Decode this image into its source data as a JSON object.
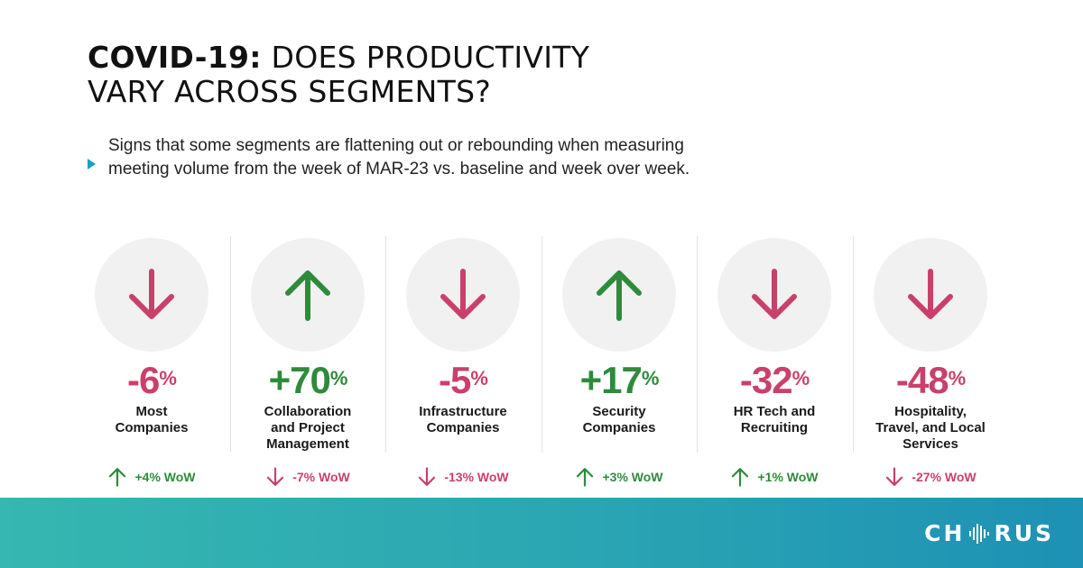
{
  "header": {
    "title_bold": "COVID-19:",
    "title_rest_line1": " DOES PRODUCTIVITY",
    "title_line2": "VARY ACROSS SEGMENTS?"
  },
  "subtitle": "Signs that some segments are flattening out or rebounding when measuring meeting volume from the week of  MAR-23 vs. baseline and week over week.",
  "colors": {
    "up": "#2e8b3a",
    "down": "#c9416a",
    "accent": "#1aa0c8"
  },
  "chart_data": {
    "type": "table",
    "title": "COVID-19: DOES PRODUCTIVITY VARY ACROSS SEGMENTS?",
    "metric": "Meeting volume change vs. baseline (week of MAR-23) and week over week",
    "segments": [
      {
        "label": "Most Companies",
        "label_lines": [
          "Most",
          "Companies"
        ],
        "change_text": "-6",
        "change_value": -6,
        "direction": "down",
        "wow_text": "+4% WoW",
        "wow_value": 4,
        "wow_direction": "up"
      },
      {
        "label": "Collaboration and Project Management",
        "label_lines": [
          "Collaboration",
          "and Project",
          "Management"
        ],
        "change_text": "+70",
        "change_value": 70,
        "direction": "up",
        "wow_text": "-7% WoW",
        "wow_value": -7,
        "wow_direction": "down"
      },
      {
        "label": "Infrastructure Companies",
        "label_lines": [
          "Infrastructure",
          "Companies"
        ],
        "change_text": "-5",
        "change_value": -5,
        "direction": "down",
        "wow_text": "-13% WoW",
        "wow_value": -13,
        "wow_direction": "down"
      },
      {
        "label": "Security Companies",
        "label_lines": [
          "Security",
          "Companies"
        ],
        "change_text": "+17",
        "change_value": 17,
        "direction": "up",
        "wow_text": "+3% WoW",
        "wow_value": 3,
        "wow_direction": "up"
      },
      {
        "label": "HR Tech and Recruiting",
        "label_lines": [
          "HR Tech and",
          "Recruiting"
        ],
        "change_text": "-32",
        "change_value": -32,
        "direction": "down",
        "wow_text": "+1% WoW",
        "wow_value": 1,
        "wow_direction": "up"
      },
      {
        "label": "Hospitality, Travel, and Local Services",
        "label_lines": [
          "Hospitality,",
          "Travel, and Local",
          "Services"
        ],
        "change_text": "-48",
        "change_value": -48,
        "direction": "down",
        "wow_text": "-27% WoW",
        "wow_value": -27,
        "wow_direction": "down"
      }
    ],
    "unit": "%"
  },
  "footer": {
    "logo_prefix": "CH",
    "logo_suffix": "RUS",
    "logo_icon": "soundwave-o-icon"
  }
}
